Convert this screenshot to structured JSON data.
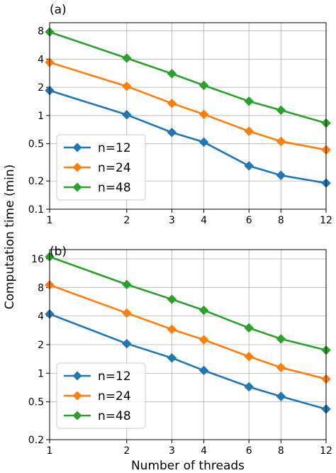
{
  "chart_data": [
    {
      "type": "line",
      "panel_label": "(a)",
      "xscale": "log",
      "yscale": "log",
      "x": [
        1,
        2,
        3,
        4,
        6,
        8,
        12
      ],
      "xticks": [
        1,
        2,
        3,
        4,
        6,
        8,
        12
      ],
      "xtick_labels": [
        "1",
        "2",
        "3",
        "4",
        "6",
        "8",
        "12"
      ],
      "xlim": [
        1,
        12
      ],
      "yticks": [
        0.1,
        0.2,
        0.5,
        1,
        2,
        4,
        8
      ],
      "ytick_labels": [
        "0.1",
        "0.2",
        "0.5",
        "1",
        "2",
        "4",
        "8"
      ],
      "ylim": [
        0.1,
        9.8
      ],
      "grid": true,
      "legend_position": "lower-left",
      "series": [
        {
          "name": "n=12",
          "color": "#1f77b4",
          "marker": "diamond",
          "values": [
            1.85,
            1.02,
            0.66,
            0.52,
            0.29,
            0.23,
            0.19
          ]
        },
        {
          "name": "n=24",
          "color": "#ff7f0e",
          "marker": "diamond",
          "values": [
            3.7,
            2.05,
            1.35,
            1.03,
            0.68,
            0.53,
            0.43
          ]
        },
        {
          "name": "n=48",
          "color": "#2ca02c",
          "marker": "diamond",
          "values": [
            7.8,
            4.1,
            2.8,
            2.1,
            1.42,
            1.14,
            0.83
          ]
        }
      ]
    },
    {
      "type": "line",
      "panel_label": "(b)",
      "xscale": "log",
      "yscale": "log",
      "x": [
        1,
        2,
        3,
        4,
        6,
        8,
        12
      ],
      "xticks": [
        1,
        2,
        3,
        4,
        6,
        8,
        12
      ],
      "xtick_labels": [
        "1",
        "2",
        "3",
        "4",
        "6",
        "8",
        "12"
      ],
      "xlim": [
        1,
        12
      ],
      "yticks": [
        0.2,
        0.5,
        1,
        2,
        4,
        8,
        16
      ],
      "ytick_labels": [
        "0.2",
        "0.5",
        "1",
        "2",
        "4",
        "8",
        "16"
      ],
      "ylim": [
        0.2,
        20
      ],
      "grid": true,
      "legend_position": "lower-left",
      "series": [
        {
          "name": "n=12",
          "color": "#1f77b4",
          "marker": "diamond",
          "values": [
            4.2,
            2.05,
            1.45,
            1.07,
            0.72,
            0.57,
            0.42
          ]
        },
        {
          "name": "n=24",
          "color": "#ff7f0e",
          "marker": "diamond",
          "values": [
            8.5,
            4.3,
            2.9,
            2.25,
            1.5,
            1.15,
            0.87
          ]
        },
        {
          "name": "n=48",
          "color": "#2ca02c",
          "marker": "diamond",
          "values": [
            16.8,
            8.6,
            6.0,
            4.6,
            3.0,
            2.3,
            1.75
          ]
        }
      ]
    }
  ],
  "ylabel": "Computation time (min)",
  "xlabel": "Number of threads"
}
